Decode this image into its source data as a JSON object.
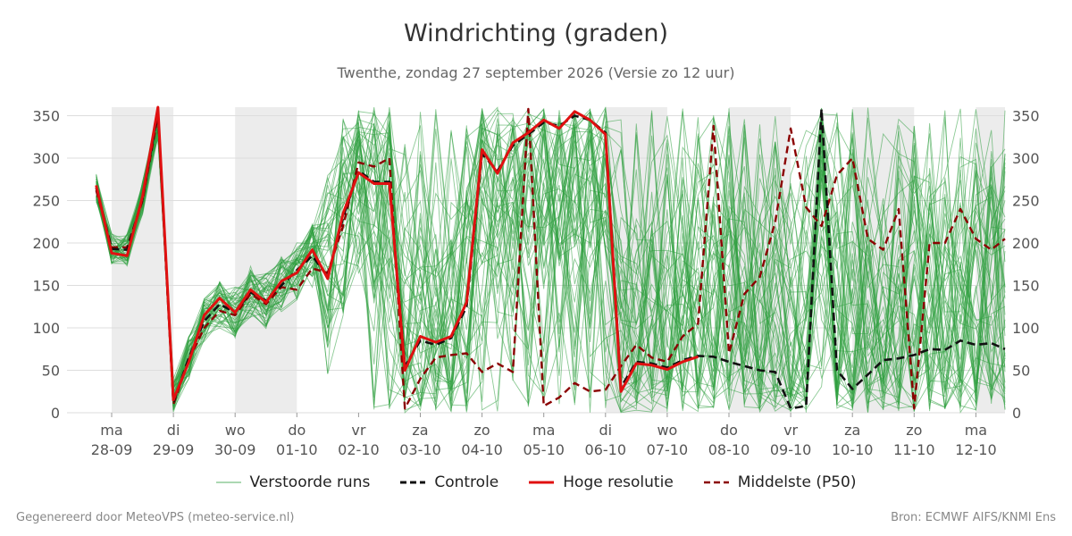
{
  "title": "Windrichting (graden)",
  "subtitle": "Twenthe, zondag 27 september 2026 (Versie zo 12 uur)",
  "footer": {
    "left": "Gegenereerd door MeteoVPS (meteo-service.nl)",
    "right": "Bron: ECMWF AIFS/KNMI Ens"
  },
  "colors": {
    "ensemble": "#2e9e3e",
    "control": "#111111",
    "highres": "#e01010",
    "median": "#8b0000",
    "weekend_band": "#ececec",
    "grid": "#dddddd"
  },
  "chart_data": {
    "type": "line",
    "ylim": [
      0,
      360
    ],
    "yticks": [
      0,
      50,
      100,
      150,
      200,
      250,
      300,
      350
    ],
    "xlim": [
      0,
      14.6
    ],
    "x_unit": "days from 28-09",
    "day_labels": [
      {
        "weekday": "ma",
        "date": "28-09"
      },
      {
        "weekday": "di",
        "date": "29-09"
      },
      {
        "weekday": "wo",
        "date": "30-09"
      },
      {
        "weekday": "do",
        "date": "01-10"
      },
      {
        "weekday": "vr",
        "date": "02-10"
      },
      {
        "weekday": "za",
        "date": "03-10"
      },
      {
        "weekday": "zo",
        "date": "04-10"
      },
      {
        "weekday": "ma",
        "date": "05-10"
      },
      {
        "weekday": "di",
        "date": "06-10"
      },
      {
        "weekday": "wo",
        "date": "07-10"
      },
      {
        "weekday": "do",
        "date": "08-10"
      },
      {
        "weekday": "vr",
        "date": "09-10"
      },
      {
        "weekday": "za",
        "date": "10-10"
      },
      {
        "weekday": "zo",
        "date": "11-10"
      },
      {
        "weekday": "ma",
        "date": "12-10"
      }
    ],
    "shaded_bands": [
      [
        0,
        1
      ],
      [
        2,
        3
      ],
      [
        8,
        9
      ],
      [
        10,
        11
      ],
      [
        12,
        13
      ],
      [
        14,
        14.6
      ]
    ],
    "legend": [
      {
        "key": "ensemble",
        "label": "Verstoorde runs",
        "style": "thin"
      },
      {
        "key": "control",
        "label": "Controle",
        "style": "dashed"
      },
      {
        "key": "highres",
        "label": "Hoge resolutie",
        "style": "solid"
      },
      {
        "key": "median",
        "label": "Middelste (P50)",
        "style": "dashed"
      }
    ],
    "series": [
      {
        "name": "Hoge resolutie",
        "key": "highres",
        "x": [
          -0.25,
          0,
          0.25,
          0.5,
          0.75,
          1,
          1.25,
          1.5,
          1.75,
          2,
          2.25,
          2.5,
          2.75,
          3,
          3.25,
          3.5,
          3.75,
          4,
          4.25,
          4.5,
          4.75,
          5,
          5.25,
          5.5,
          5.75,
          6,
          6.25,
          6.5,
          6.75,
          7,
          7.25,
          7.5,
          7.75,
          8,
          8.25,
          8.5,
          8.75,
          9,
          9.25,
          9.5
        ],
        "values": [
          268,
          188,
          185,
          255,
          360,
          15,
          60,
          115,
          135,
          118,
          145,
          130,
          155,
          165,
          192,
          158,
          235,
          283,
          270,
          270,
          50,
          90,
          83,
          90,
          130,
          310,
          282,
          318,
          330,
          345,
          335,
          355,
          345,
          328,
          25,
          58,
          56,
          51,
          60,
          66
        ]
      },
      {
        "name": "Controle",
        "key": "control",
        "x": [
          -0.25,
          0,
          0.25,
          0.5,
          0.75,
          1,
          1.25,
          1.5,
          1.75,
          2,
          2.25,
          2.5,
          2.75,
          3,
          3.25,
          3.5,
          3.75,
          4,
          4.25,
          4.5,
          4.75,
          5,
          5.25,
          5.5,
          5.75,
          6,
          6.25,
          6.5,
          6.75,
          7,
          7.25,
          7.5,
          7.75,
          8,
          8.25,
          8.5,
          8.75,
          9,
          9.25,
          9.5,
          9.75,
          10,
          10.25,
          10.5,
          10.75,
          11,
          11.25,
          11.5,
          11.75,
          12,
          12.25,
          12.5,
          12.75,
          13,
          13.25,
          13.5,
          13.75,
          14,
          14.25,
          14.5
        ],
        "values": [
          265,
          193,
          192,
          252,
          355,
          12,
          65,
          108,
          128,
          118,
          142,
          132,
          150,
          168,
          185,
          160,
          230,
          285,
          272,
          272,
          55,
          85,
          80,
          88,
          125,
          305,
          285,
          315,
          328,
          342,
          338,
          350,
          345,
          330,
          30,
          60,
          58,
          53,
          62,
          67,
          66,
          60,
          55,
          50,
          48,
          5,
          8,
          358,
          50,
          28,
          45,
          62,
          64,
          68,
          75,
          74,
          85,
          80,
          82,
          75
        ]
      },
      {
        "name": "Middelste (P50)",
        "key": "median",
        "x": [
          -0.25,
          0,
          0.25,
          0.5,
          0.75,
          1,
          1.25,
          1.5,
          1.75,
          2,
          2.25,
          2.5,
          2.75,
          3,
          3.25,
          3.5,
          3.75,
          4,
          4.25,
          4.5,
          4.75,
          5,
          5.25,
          5.5,
          5.75,
          6,
          6.25,
          6.5,
          6.75,
          7,
          7.25,
          7.5,
          7.75,
          8,
          8.25,
          8.5,
          8.75,
          9,
          9.25,
          9.5,
          9.75,
          10,
          10.25,
          10.5,
          10.75,
          11,
          11.25,
          11.5,
          11.75,
          12,
          12.25,
          12.5,
          12.75,
          13,
          13.25,
          13.5,
          13.75,
          14,
          14.25,
          14.5
        ],
        "values": [
          262,
          195,
          195,
          250,
          350,
          10,
          62,
          100,
          120,
          115,
          140,
          128,
          148,
          145,
          170,
          165,
          220,
          295,
          290,
          300,
          5,
          40,
          65,
          68,
          70,
          48,
          58,
          48,
          358,
          8,
          18,
          35,
          25,
          27,
          55,
          80,
          65,
          60,
          90,
          105,
          338,
          70,
          140,
          160,
          225,
          335,
          242,
          220,
          280,
          300,
          205,
          192,
          240,
          5,
          200,
          200,
          240,
          205,
          192,
          205
        ]
      }
    ]
  }
}
